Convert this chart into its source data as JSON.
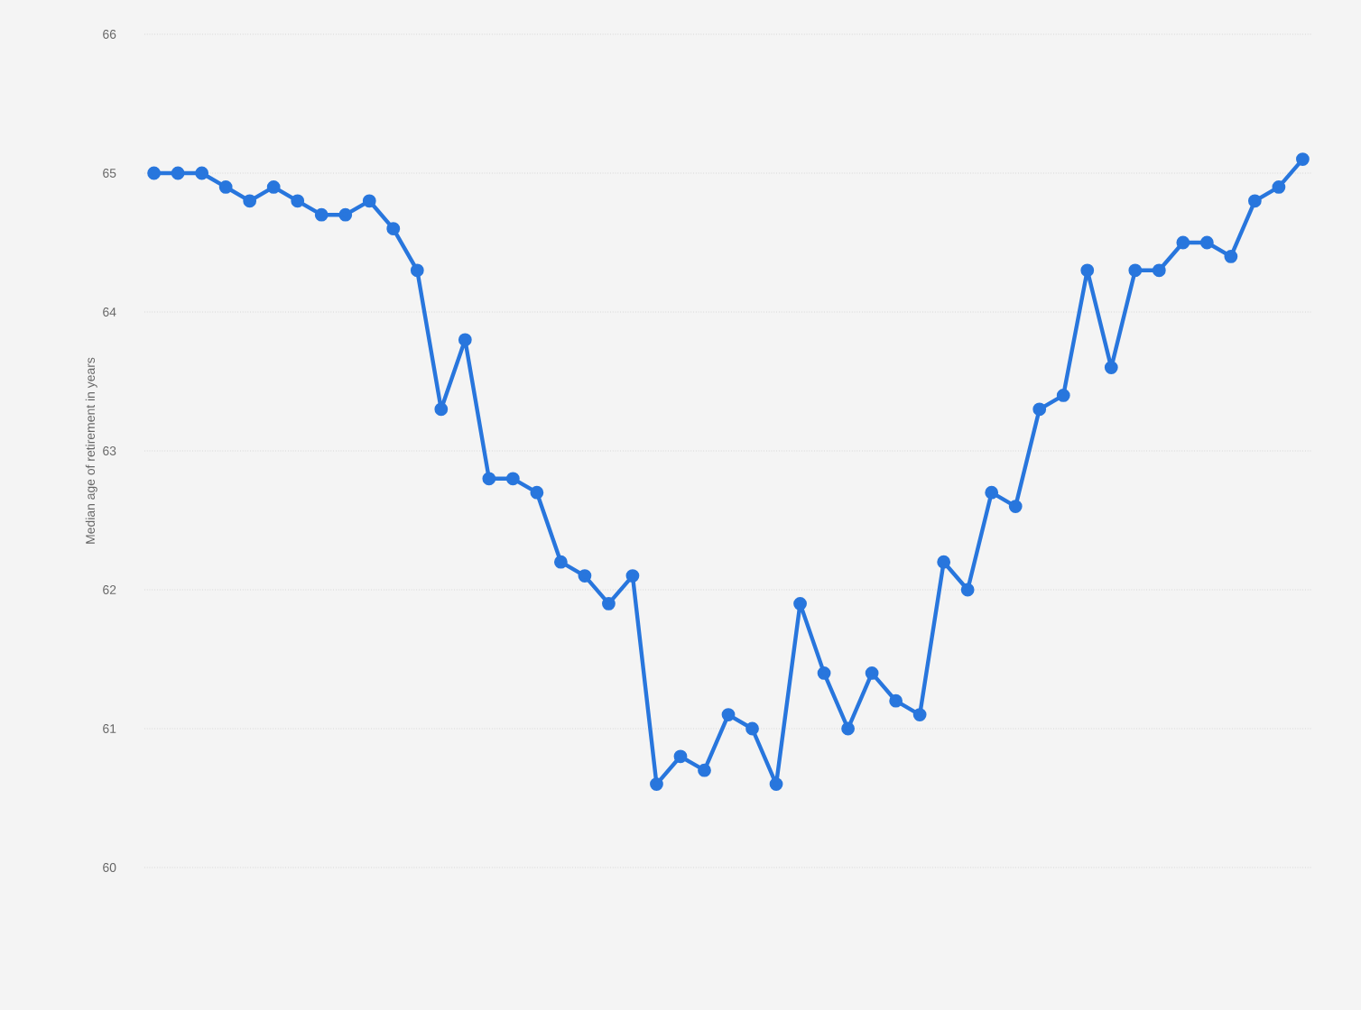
{
  "chart_data": {
    "type": "line",
    "ylabel": "Median age of retirement in years",
    "categories": [
      null,
      null,
      null,
      null,
      null,
      null,
      null,
      null,
      null,
      null,
      null,
      null,
      null,
      null,
      null,
      null,
      null,
      null,
      null,
      null,
      null,
      null,
      null,
      null,
      null,
      null,
      null,
      null,
      null,
      null,
      null,
      null,
      null,
      null,
      null,
      null,
      null,
      null,
      null,
      null,
      null,
      null,
      null,
      null,
      null,
      null,
      null,
      null,
      null
    ],
    "series": [
      {
        "color": "#2876dd",
        "values": [
          65.0,
          65.0,
          65.0,
          64.9,
          64.8,
          64.9,
          64.8,
          64.7,
          64.7,
          64.8,
          64.6,
          64.3,
          63.3,
          63.8,
          62.8,
          62.8,
          62.7,
          62.2,
          62.1,
          61.9,
          62.1,
          60.6,
          60.8,
          60.7,
          61.1,
          61.0,
          60.6,
          61.9,
          61.4,
          61.0,
          61.4,
          61.2,
          61.1,
          62.2,
          62.0,
          62.7,
          62.6,
          63.3,
          63.4,
          64.3,
          63.6,
          64.3,
          64.3,
          64.5,
          64.5,
          64.4,
          64.8,
          64.9,
          65.1
        ]
      }
    ],
    "ylim": [
      60,
      66
    ],
    "yticks": [
      60,
      61,
      62,
      63,
      64,
      65,
      66
    ],
    "grid": "y",
    "marker": "circle",
    "line_style": "solid",
    "tick_labels": "y"
  }
}
